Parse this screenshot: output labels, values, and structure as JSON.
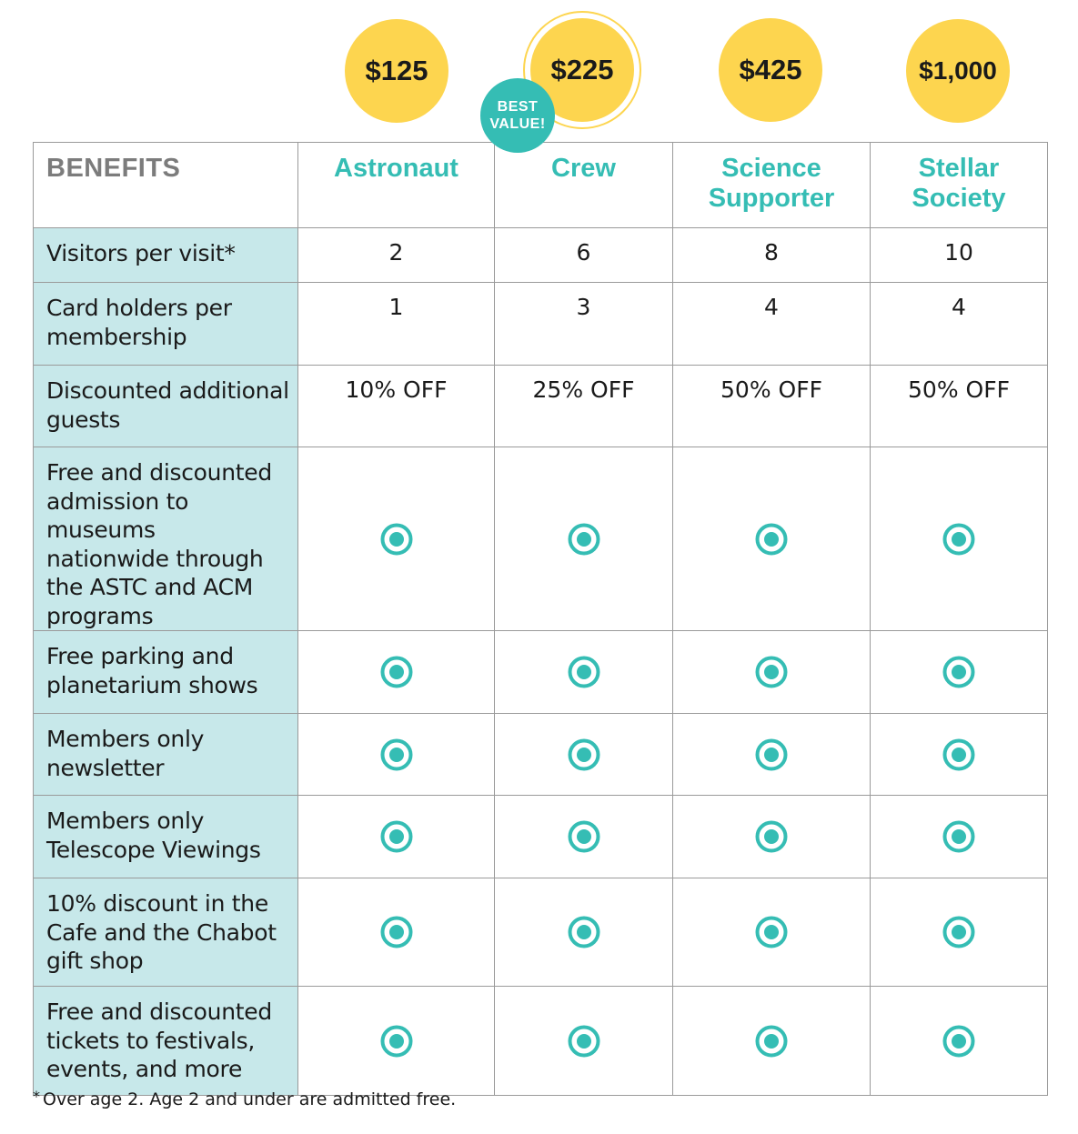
{
  "prices": [
    {
      "tier": "Astronaut",
      "price": "$125"
    },
    {
      "tier": "Crew",
      "price": "$225"
    },
    {
      "tier": "Science Supporter",
      "price": "$425"
    },
    {
      "tier": "Stellar Society",
      "price": "$1,000"
    }
  ],
  "badge": {
    "line1": "BEST",
    "line2": "VALUE!"
  },
  "colors": {
    "accent": "#35bdb4",
    "price_circle": "#fdd54f",
    "label_background": "#c7e8ea",
    "grid_border": "#9a9a9a"
  },
  "table": {
    "header_label": "BENEFITS",
    "tiers": [
      {
        "line1": "Astronaut",
        "line2": ""
      },
      {
        "line1": "Crew",
        "line2": ""
      },
      {
        "line1": "Science",
        "line2": "Supporter"
      },
      {
        "line1": "Stellar",
        "line2": "Society"
      }
    ],
    "rows": [
      {
        "label": [
          "Visitors per visit*"
        ],
        "type": "value",
        "values": [
          "2",
          "6",
          "8",
          "10"
        ]
      },
      {
        "label": [
          "Card holders per",
          "membership"
        ],
        "type": "value",
        "values": [
          "1",
          "3",
          "4",
          "4"
        ]
      },
      {
        "label": [
          "Discounted additional",
          "guests"
        ],
        "type": "value",
        "values": [
          "10% OFF",
          "25% OFF",
          "50% OFF",
          "50% OFF"
        ]
      },
      {
        "label": [
          "Free and discounted",
          "admission to museums",
          "nationwide through",
          "the ASTC and ACM",
          "programs"
        ],
        "type": "check",
        "values": [
          true,
          true,
          true,
          true
        ]
      },
      {
        "label": [
          "Free parking and",
          "planetarium shows"
        ],
        "type": "check",
        "values": [
          true,
          true,
          true,
          true
        ]
      },
      {
        "label": [
          "Members only",
          "newsletter"
        ],
        "type": "check",
        "values": [
          true,
          true,
          true,
          true
        ]
      },
      {
        "label": [
          "Members only",
          "Telescope Viewings"
        ],
        "type": "check",
        "values": [
          true,
          true,
          true,
          true
        ]
      },
      {
        "label": [
          "10% discount in the",
          "Cafe and the Chabot",
          "gift shop"
        ],
        "type": "check",
        "values": [
          true,
          true,
          true,
          true
        ]
      },
      {
        "label": [
          "Free and discounted",
          "tickets to festivals,",
          "events, and more"
        ],
        "type": "check",
        "values": [
          true,
          true,
          true,
          true
        ]
      }
    ]
  },
  "footnote": {
    "marker": "*",
    "text": "Over age 2. Age 2 and under are admitted free."
  },
  "icons": {
    "check": "radio-check-icon"
  }
}
